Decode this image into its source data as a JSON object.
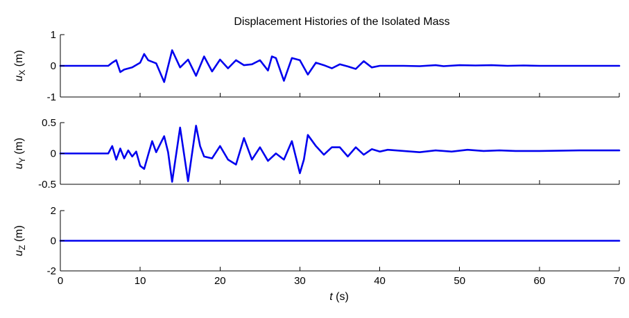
{
  "chart_data": {
    "type": "line",
    "title": "Displacement Histories of the Isolated Mass",
    "xlabel": {
      "italic": "t",
      "text": " (s)"
    },
    "xlim": [
      0,
      70
    ],
    "xticks": [
      0,
      10,
      20,
      30,
      40,
      50,
      60,
      70
    ],
    "line_color": "#0000ee",
    "grid": false,
    "subplots": [
      {
        "ylabel": {
          "base": "u",
          "sub": "X",
          "unit": " (m)"
        },
        "ylim": [
          -1,
          1
        ],
        "yticks": [
          -1,
          0,
          1
        ],
        "series": [
          {
            "x": [
              0,
              6,
              6.5,
              7,
              7.5,
              8,
              9,
              10,
              10.5,
              11,
              12,
              13,
              14,
              15,
              16,
              17,
              18,
              19,
              20,
              21,
              22,
              23,
              24,
              25,
              26,
              26.5,
              27,
              28,
              29,
              30,
              31,
              32,
              33,
              34,
              35,
              36,
              37,
              38,
              39,
              40,
              41,
              42,
              43,
              45,
              47,
              48,
              50,
              52,
              54,
              56,
              58,
              60,
              62,
              64,
              66,
              68,
              70
            ],
            "y": [
              0,
              0,
              0.1,
              0.18,
              -0.2,
              -0.12,
              -0.05,
              0.1,
              0.38,
              0.18,
              0.08,
              -0.52,
              0.5,
              -0.05,
              0.2,
              -0.32,
              0.3,
              -0.18,
              0.2,
              -0.08,
              0.18,
              0.02,
              0.05,
              0.18,
              -0.15,
              0.3,
              0.25,
              -0.48,
              0.25,
              0.18,
              -0.28,
              0.1,
              0.02,
              -0.08,
              0.05,
              -0.02,
              -0.1,
              0.15,
              -0.05,
              0,
              0,
              0,
              0,
              -0.01,
              0.02,
              -0.01,
              0.02,
              0.01,
              0.02,
              0,
              0.01,
              0,
              0,
              0,
              0,
              0,
              0
            ]
          }
        ]
      },
      {
        "ylabel": {
          "base": "u",
          "sub": "Y",
          "unit": " (m)"
        },
        "ylim": [
          -0.5,
          0.5
        ],
        "yticks": [
          -0.5,
          0,
          0.5
        ],
        "series": [
          {
            "x": [
              0,
              6,
              6.5,
              7,
              7.5,
              8,
              8.5,
              9,
              9.5,
              10,
              10.5,
              11,
              11.5,
              12,
              12.5,
              13,
              13.5,
              14,
              15,
              16,
              17,
              17.5,
              18,
              19,
              20,
              21,
              22,
              23,
              24,
              25,
              26,
              27,
              28,
              29,
              30,
              30.5,
              31,
              32,
              33,
              34,
              35,
              36,
              37,
              38,
              39,
              40,
              41,
              43,
              45,
              47,
              49,
              51,
              53,
              55,
              57,
              60,
              65,
              70
            ],
            "y": [
              0,
              0,
              0.12,
              -0.1,
              0.08,
              -0.08,
              0.05,
              -0.05,
              0.03,
              -0.2,
              -0.25,
              -0.02,
              0.2,
              0.02,
              0.15,
              0.28,
              0.02,
              -0.46,
              0.42,
              -0.45,
              0.45,
              0.12,
              -0.05,
              -0.08,
              0.12,
              -0.1,
              -0.18,
              0.25,
              -0.1,
              0.1,
              -0.12,
              0,
              -0.1,
              0.2,
              -0.32,
              -0.1,
              0.3,
              0.12,
              -0.02,
              0.1,
              0.1,
              -0.05,
              0.1,
              -0.02,
              0.07,
              0.03,
              0.06,
              0.04,
              0.02,
              0.05,
              0.03,
              0.06,
              0.04,
              0.05,
              0.04,
              0.04,
              0.05,
              0.05
            ]
          }
        ]
      },
      {
        "ylabel": {
          "base": "u",
          "sub": "Z",
          "unit": " (m)"
        },
        "ylim": [
          -2,
          2
        ],
        "yticks": [
          -2,
          0,
          2
        ],
        "series": [
          {
            "x": [
              0,
              70
            ],
            "y": [
              0,
              0
            ]
          }
        ]
      }
    ]
  }
}
